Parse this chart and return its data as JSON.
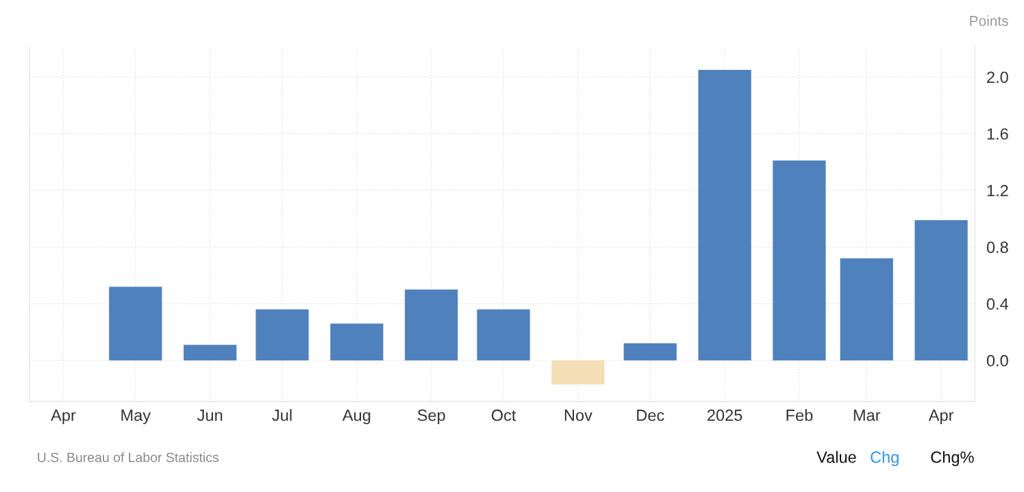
{
  "chart_data": {
    "type": "bar",
    "ylabel": "Points",
    "x": [
      "2024-05",
      "2024-06",
      "2024-07",
      "2024-08",
      "2024-09",
      "2024-10",
      "2024-11",
      "2024-12",
      "2025-01",
      "2025-02",
      "2025-03",
      "2025-04"
    ],
    "values": [
      0.52,
      0.11,
      0.36,
      0.26,
      0.5,
      0.36,
      -0.17,
      0.12,
      2.05,
      1.41,
      0.72,
      0.99
    ],
    "colors": [
      "#4f81bd",
      "#4f81bd",
      "#4f81bd",
      "#4f81bd",
      "#4f81bd",
      "#4f81bd",
      "#f3deb5",
      "#4f81bd",
      "#4f81bd",
      "#4f81bd",
      "#4f81bd",
      "#4f81bd"
    ],
    "xlim": [
      "2024-03-18",
      "2025-04-15"
    ],
    "xticks": [
      {
        "value": "2024-04",
        "label": "Apr"
      },
      {
        "value": "2024-05",
        "label": "May"
      },
      {
        "value": "2024-06",
        "label": "Jun"
      },
      {
        "value": "2024-07",
        "label": "Jul"
      },
      {
        "value": "2024-08",
        "label": "Aug"
      },
      {
        "value": "2024-09",
        "label": "Sep"
      },
      {
        "value": "2024-10",
        "label": "Oct"
      },
      {
        "value": "2024-11",
        "label": "Nov"
      },
      {
        "value": "2024-12",
        "label": "Dec"
      },
      {
        "value": "2025-01",
        "label": "2025"
      },
      {
        "value": "2025-02",
        "label": "Feb"
      },
      {
        "value": "2025-03",
        "label": "Mar"
      },
      {
        "value": "2025-04",
        "label": "Apr"
      }
    ],
    "ylim": [
      -0.29,
      2.21
    ],
    "yticks": [
      {
        "value": 0,
        "label": "0.0"
      },
      {
        "value": 0.4,
        "label": "0.4"
      },
      {
        "value": 0.8,
        "label": "0.8"
      },
      {
        "value": 1.2,
        "label": "1.2"
      },
      {
        "value": 1.6,
        "label": "1.6"
      },
      {
        "value": 2.0,
        "label": "2.0"
      }
    ],
    "grid": true,
    "legend": false,
    "annotations": [
      "U.S. Bureau of Labor Statistics",
      "Value",
      "Chg",
      "Chg%"
    ]
  }
}
